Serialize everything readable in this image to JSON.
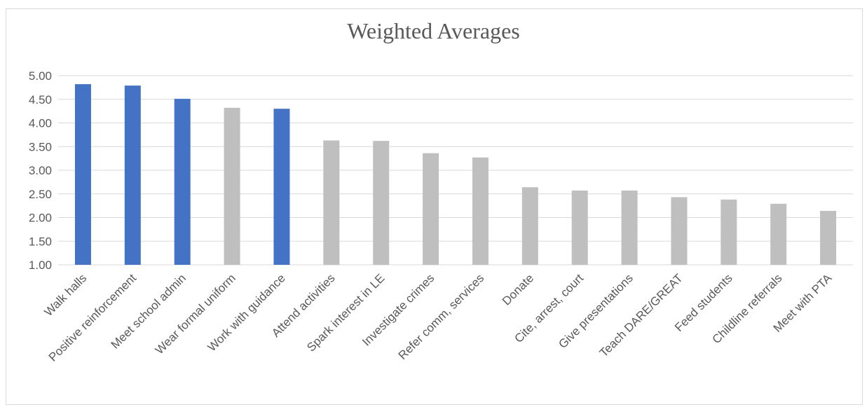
{
  "chart_data": {
    "type": "bar",
    "title": "Weighted Averages",
    "xlabel": "",
    "ylabel": "",
    "ylim": [
      1.0,
      5.0
    ],
    "yticks": [
      "1.00",
      "1.50",
      "2.00",
      "2.50",
      "3.00",
      "3.50",
      "4.00",
      "4.50",
      "5.00"
    ],
    "grid": true,
    "legend": "none",
    "categories": [
      "Walk halls",
      "Positive reinforcement",
      "Meet school admin",
      "Wear formal uniform",
      "Work with guidance",
      "Attend activities",
      "Spark interest in LE",
      "Investigate crimes",
      "Refer comm, services",
      "Donate",
      "Cite, arrest, court",
      "Give presentations",
      "Teach DARE/GREAT",
      "Feed students",
      "Childline referrals",
      "Meet with PTA"
    ],
    "values": [
      4.82,
      4.79,
      4.51,
      4.32,
      4.3,
      3.63,
      3.62,
      3.36,
      3.27,
      2.64,
      2.57,
      2.57,
      2.43,
      2.38,
      2.29,
      2.14
    ],
    "highlighted": [
      true,
      true,
      true,
      false,
      true,
      false,
      false,
      false,
      false,
      false,
      false,
      false,
      false,
      false,
      false,
      false
    ],
    "colors": {
      "highlight": "#4472c4",
      "default": "#bfbfbf",
      "grid": "#d9d9d9",
      "text": "#595959"
    }
  }
}
